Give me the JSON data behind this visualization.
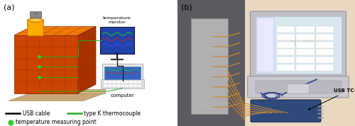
{
  "fig_width": 5.0,
  "fig_height": 1.78,
  "dpi": 100,
  "label_a": "(a)",
  "label_b": "(b)",
  "legend_usb": "USB cable",
  "legend_thermo": "type K thermocouple",
  "legend_point": "temperature measuring point",
  "text_temp_monitor": "temperature\nmonitor",
  "text_computer": "computer",
  "text_usb_tc08": "USB TC-08",
  "bg_left": "#f0f0f0",
  "bg_right_photo": "#d8cfc4",
  "cube_front_color": "#cc4400",
  "cube_top_color": "#ff8800",
  "cube_right_color": "#aa3300",
  "cube_grid_color": "#aa3300",
  "base_color": "#c8a878",
  "base_edge": "#a08860",
  "monitor_blue": "#2244aa",
  "laptop_body": "#e8e8e8",
  "laptop_screen_bg": "#3366bb",
  "green_line": "#22aa22",
  "green_dot": "#33cc33",
  "black_line": "#111111",
  "orange_wire": "#cc8833",
  "usb_cable_color": "#334488",
  "usb_device_color": "#334477",
  "pico_text": "#cccccc",
  "cylinder_color": "#ffaa00",
  "cylinder_edge": "#cc7700"
}
